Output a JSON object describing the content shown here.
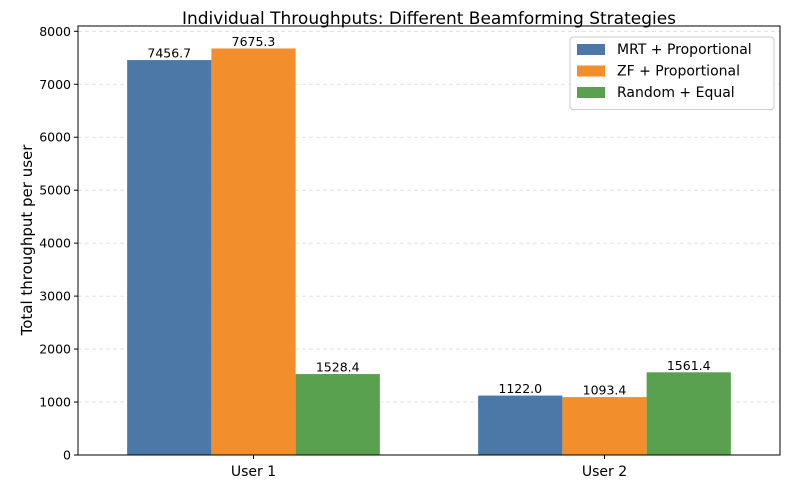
{
  "chart_data": {
    "type": "bar",
    "title": "Individual Throughputs: Different Beamforming Strategies",
    "xlabel": "",
    "ylabel": "Total throughput per user",
    "categories": [
      "User 1",
      "User 2"
    ],
    "series": [
      {
        "name": "MRT + Proportional",
        "color": "#4c78a8",
        "values": [
          7456.7,
          1122.0
        ],
        "labels": [
          "7456.7",
          "1122.0"
        ]
      },
      {
        "name": "ZF + Proportional",
        "color": "#f28e2b",
        "values": [
          7675.3,
          1093.4
        ],
        "labels": [
          "7675.3",
          "1093.4"
        ]
      },
      {
        "name": "Random + Equal",
        "color": "#59a14f",
        "values": [
          1528.4,
          1561.4
        ],
        "labels": [
          "1528.4",
          "1561.4"
        ]
      }
    ],
    "ylim": [
      0,
      8100
    ],
    "yticks": [
      0,
      1000,
      2000,
      3000,
      4000,
      5000,
      6000,
      7000,
      8000
    ],
    "grid": "y-dashed",
    "legend_position": "top-right"
  }
}
